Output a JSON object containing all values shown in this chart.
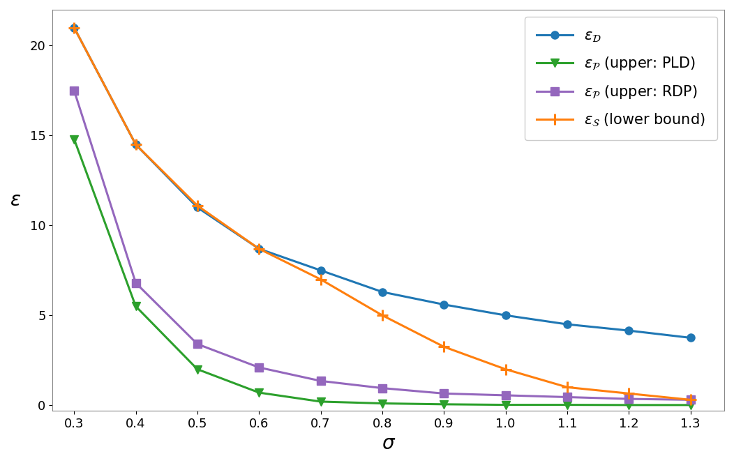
{
  "sigma": [
    0.3,
    0.4,
    0.5,
    0.6,
    0.7,
    0.8,
    0.9,
    1.0,
    1.1,
    1.2,
    1.3
  ],
  "epsilon_D": [
    21.0,
    14.5,
    11.0,
    8.7,
    7.5,
    6.3,
    5.6,
    5.0,
    4.5,
    4.15,
    3.75
  ],
  "epsilon_P_PLD": [
    14.8,
    5.5,
    2.0,
    0.7,
    0.2,
    0.1,
    0.05,
    0.02,
    0.02,
    0.01,
    0.01
  ],
  "epsilon_P_RDP": [
    17.5,
    6.8,
    3.4,
    2.1,
    1.35,
    0.95,
    0.65,
    0.55,
    0.45,
    0.35,
    0.3
  ],
  "epsilon_S_lower": [
    21.0,
    14.5,
    11.1,
    8.7,
    7.0,
    5.0,
    3.25,
    2.0,
    1.0,
    0.65,
    0.3
  ],
  "color_D": "#1f77b4",
  "color_P_PLD": "#2ca02c",
  "color_P_RDP": "#9467bd",
  "color_S": "#ff7f0e",
  "xlabel": "$\\sigma$",
  "ylabel": "$\\varepsilon$",
  "legend_D": "$\\varepsilon_{\\mathcal{D}}$",
  "legend_P_PLD": "$\\varepsilon_{\\mathcal{P}}$ (upper: PLD)",
  "legend_P_RDP": "$\\varepsilon_{\\mathcal{P}}$ (upper: RDP)",
  "legend_S": "$\\varepsilon_{\\mathcal{S}}$ (lower bound)",
  "xlim": [
    0.265,
    1.355
  ],
  "ylim": [
    -0.3,
    22.0
  ],
  "yticks": [
    0,
    5,
    10,
    15,
    20
  ],
  "xticks": [
    0.3,
    0.4,
    0.5,
    0.6,
    0.7,
    0.8,
    0.9,
    1.0,
    1.1,
    1.2,
    1.3
  ],
  "figsize": [
    10.52,
    6.64
  ],
  "dpi": 100
}
